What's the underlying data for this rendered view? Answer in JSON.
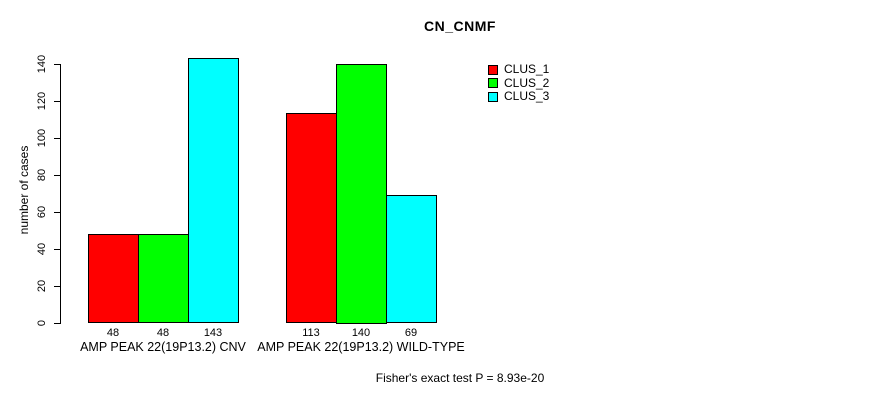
{
  "chart_data": {
    "type": "bar",
    "title": "CN_CNMF",
    "xlabel": "",
    "ylabel": "number of cases",
    "ylim": [
      0,
      140
    ],
    "yticks": [
      0,
      20,
      40,
      60,
      80,
      100,
      120,
      140
    ],
    "grid": false,
    "legend_position": "top-right",
    "background_color": "#FFFFFF",
    "bar_border_color": "#000000",
    "categories": [
      "AMP PEAK 22(19P13.2) CNV",
      "AMP PEAK 22(19P13.2) WILD-TYPE"
    ],
    "series": [
      {
        "name": "CLUS_1",
        "color": "#FF0000",
        "values": [
          48,
          113
        ]
      },
      {
        "name": "CLUS_2",
        "color": "#00FF00",
        "values": [
          48,
          140
        ]
      },
      {
        "name": "CLUS_3",
        "color": "#00FFFF",
        "values": [
          143,
          69
        ]
      }
    ],
    "bar_value_labels_shown": true,
    "annotation": "Fisher's exact test P = 8.93e-20"
  }
}
